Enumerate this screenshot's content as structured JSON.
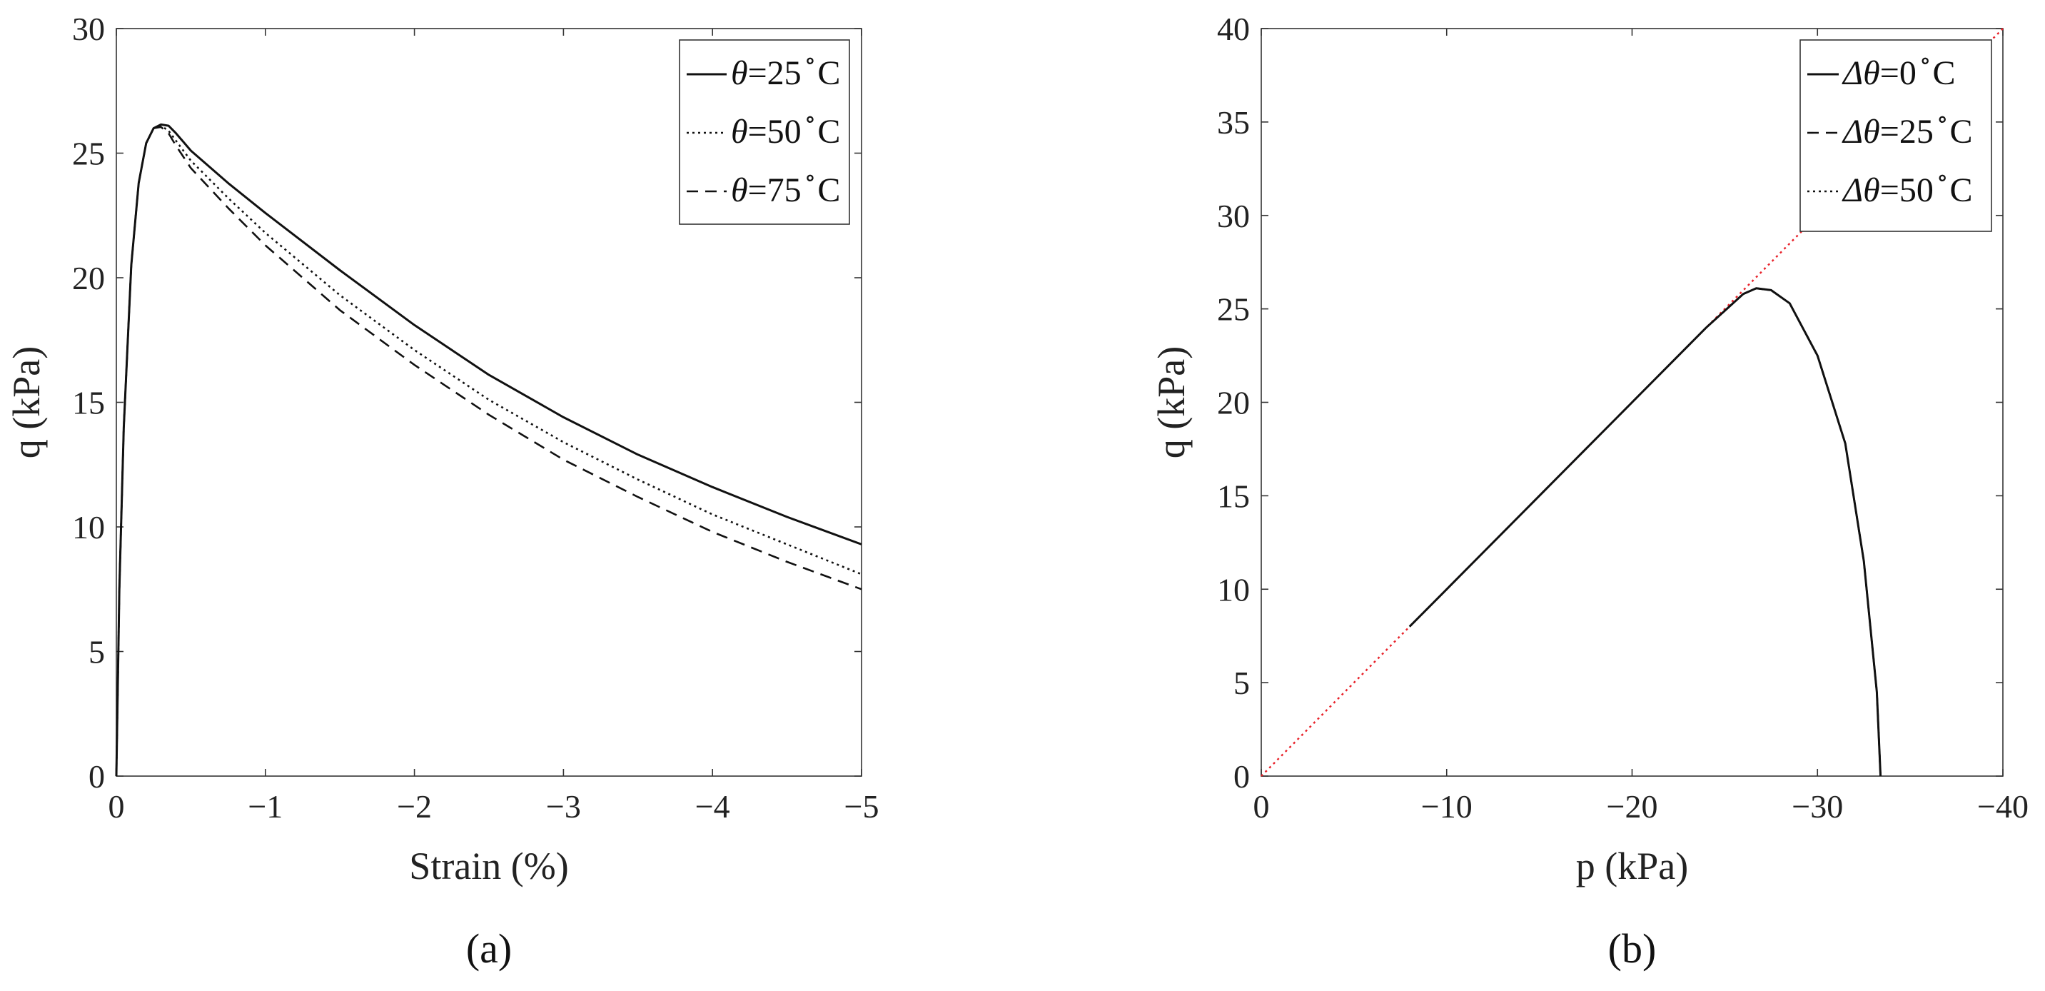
{
  "chart_data": [
    {
      "type": "line",
      "panel_label": "(a)",
      "xlabel": "Strain (%)",
      "ylabel": "q (kPa)",
      "xlim": [
        0,
        -5
      ],
      "ylim": [
        0,
        30
      ],
      "xticks": [
        "0",
        "−1",
        "−2",
        "−3",
        "−4",
        "−5"
      ],
      "yticks": [
        "0",
        "5",
        "10",
        "15",
        "20",
        "25",
        "30"
      ],
      "grid": false,
      "legend_position": "top-right",
      "series": [
        {
          "name": "θ=25 °C",
          "legend_symbol": "θ",
          "legend_value": "=25",
          "legend_unit": "C",
          "style": "solid",
          "x": [
            0,
            -0.02,
            -0.05,
            -0.1,
            -0.15,
            -0.2,
            -0.25,
            -0.3,
            -0.35,
            -0.4,
            -0.5,
            -0.75,
            -1,
            -1.5,
            -2,
            -2.5,
            -3,
            -3.5,
            -4,
            -4.5,
            -5
          ],
          "y": [
            0,
            7.5,
            14,
            20.5,
            23.8,
            25.4,
            26.0,
            26.15,
            26.1,
            25.8,
            25.1,
            23.8,
            22.6,
            20.3,
            18.1,
            16.1,
            14.4,
            12.9,
            11.6,
            10.4,
            9.3
          ]
        },
        {
          "name": "θ=50 °C",
          "legend_symbol": "θ",
          "legend_value": "=50",
          "legend_unit": "C",
          "style": "dotted",
          "x": [
            0,
            -0.02,
            -0.05,
            -0.1,
            -0.15,
            -0.2,
            -0.25,
            -0.3,
            -0.35,
            -0.4,
            -0.5,
            -0.75,
            -1,
            -1.5,
            -2,
            -2.5,
            -3,
            -3.5,
            -4,
            -4.5,
            -5
          ],
          "y": [
            0,
            7.5,
            14,
            20.5,
            23.8,
            25.4,
            26.0,
            26.1,
            25.9,
            25.5,
            24.7,
            23.2,
            21.8,
            19.3,
            17.1,
            15.1,
            13.4,
            11.9,
            10.5,
            9.3,
            8.1
          ]
        },
        {
          "name": "θ=75 °C",
          "legend_symbol": "θ",
          "legend_value": "=75",
          "legend_unit": "C",
          "style": "dashed",
          "x": [
            0,
            -0.02,
            -0.05,
            -0.1,
            -0.15,
            -0.2,
            -0.25,
            -0.3,
            -0.35,
            -0.4,
            -0.5,
            -0.75,
            -1,
            -1.5,
            -2,
            -2.5,
            -3,
            -3.5,
            -4,
            -4.5,
            -5
          ],
          "y": [
            0,
            7.5,
            14,
            20.5,
            23.8,
            25.4,
            26.0,
            26.05,
            25.8,
            25.3,
            24.4,
            22.8,
            21.3,
            18.7,
            16.5,
            14.5,
            12.7,
            11.2,
            9.8,
            8.6,
            7.5
          ]
        }
      ]
    },
    {
      "type": "line",
      "panel_label": "(b)",
      "xlabel": "p (kPa)",
      "ylabel": "q (kPa)",
      "xlim": [
        0,
        -40
      ],
      "ylim": [
        0,
        40
      ],
      "xticks": [
        "0",
        "−10",
        "−20",
        "−30",
        "−40"
      ],
      "yticks": [
        "0",
        "5",
        "10",
        "15",
        "20",
        "25",
        "30",
        "35",
        "40"
      ],
      "grid": false,
      "legend_position": "top-right",
      "series": [
        {
          "name": "Δθ=0 °C",
          "legend_symbol": "Δθ",
          "legend_value": "=0",
          "legend_unit": "C",
          "style": "solid",
          "x": [
            -8,
            -10,
            -15,
            -20,
            -24,
            -26,
            -26.7,
            -27.5,
            -28.5,
            -30,
            -31.5,
            -32.5,
            -33.2,
            -33.4
          ],
          "y": [
            8,
            10,
            15,
            20,
            24,
            25.8,
            26.1,
            26.0,
            25.3,
            22.5,
            17.8,
            11.5,
            4.5,
            0
          ]
        },
        {
          "name": "Δθ=25 °C",
          "legend_symbol": "Δθ",
          "legend_value": "=25",
          "legend_unit": "C",
          "style": "dashed",
          "x": [
            -8,
            -10,
            -15,
            -20,
            -24,
            -26,
            -26.7,
            -27.5,
            -28.5,
            -30,
            -31.5,
            -32.5,
            -33.2,
            -33.4
          ],
          "y": [
            8,
            10,
            15,
            20,
            24,
            25.8,
            26.1,
            26.0,
            25.3,
            22.5,
            17.8,
            11.5,
            4.5,
            0
          ]
        },
        {
          "name": "Δθ=50 °C",
          "legend_symbol": "Δθ",
          "legend_value": "=50",
          "legend_unit": "C",
          "style": "dotted",
          "x": [
            -8,
            -10,
            -15,
            -20,
            -24,
            -26,
            -26.7,
            -27.5,
            -28.5,
            -30,
            -31.5,
            -32.5,
            -33.2,
            -33.4
          ],
          "y": [
            8,
            10,
            15,
            20,
            24,
            25.8,
            26.1,
            26.0,
            25.3,
            22.5,
            17.8,
            11.5,
            4.5,
            0
          ]
        }
      ],
      "reference_line": {
        "x": [
          0,
          -40
        ],
        "y": [
          0,
          40
        ],
        "color": "#e8222a",
        "style": "dotted"
      }
    }
  ]
}
